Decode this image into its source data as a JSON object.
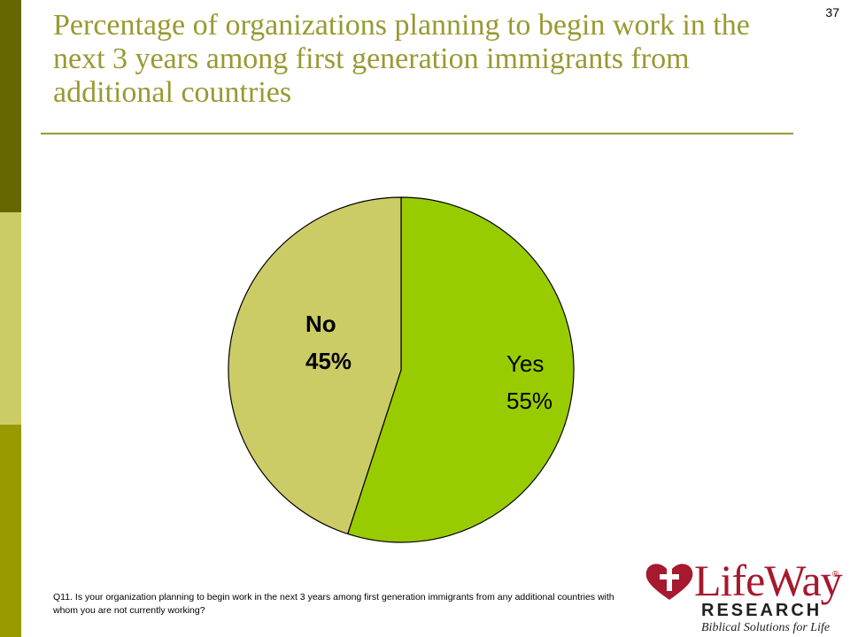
{
  "page_number": "37",
  "chart_data": {
    "type": "pie",
    "title": "Percentage of organizations planning to begin work in the next 3 years among first generation immigrants from additional countries",
    "slices": [
      {
        "label": "Yes",
        "value": 55,
        "value_label": "55%",
        "color": "#99cc00"
      },
      {
        "label": "No",
        "value": 45,
        "value_label": "45%",
        "color": "#cccc66"
      }
    ]
  },
  "footnote": "Q11. Is your organization planning to begin work in the next 3 years among first generation immigrants from any additional countries with whom you are not currently working?",
  "logo": {
    "main": "LifeWay",
    "registered": "®",
    "sub": "RESEARCH",
    "tagline": "Biblical Solutions for Life"
  },
  "colors": {
    "title": "#999933",
    "side_dark": "#666600",
    "side_light": "#cccc66",
    "side_mid": "#999900",
    "brand": "#a6192e"
  }
}
